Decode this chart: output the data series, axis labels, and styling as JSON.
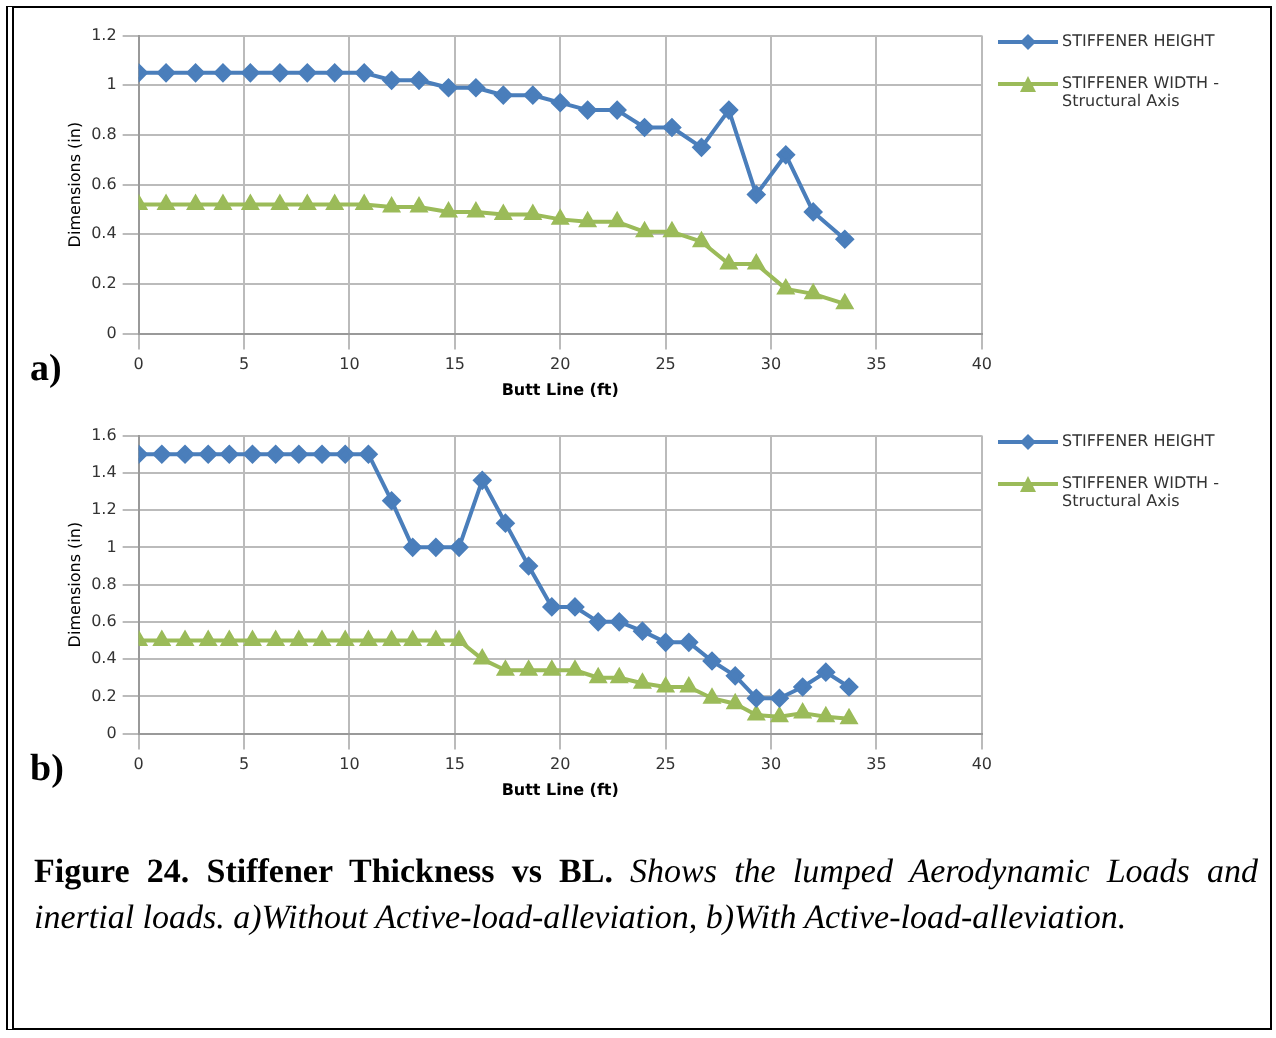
{
  "chart_data": [
    {
      "type": "line",
      "xlabel": "Butt Line (ft)",
      "ylabel": "Dimensions (in)",
      "xlim": [
        0,
        40
      ],
      "xticks": [
        0,
        5,
        10,
        15,
        20,
        25,
        30,
        35,
        40
      ],
      "ylim": [
        0,
        1.2
      ],
      "yticks": [
        0,
        0.2,
        0.4,
        0.6,
        0.8,
        1,
        1.2
      ],
      "grid": true,
      "legend": "right",
      "annotations": [
        "a)"
      ],
      "series": [
        {
          "name": "STIFFENER HEIGHT",
          "color": "#4a7ebb",
          "marker": "diamond",
          "x": [
            0,
            1.3,
            2.7,
            4,
            5.3,
            6.7,
            8,
            9.3,
            10.7,
            12,
            13.3,
            14.7,
            16,
            17.3,
            18.7,
            20,
            21.3,
            22.7,
            24,
            25.3,
            26.7,
            28,
            29.3,
            30.7,
            32,
            33.5
          ],
          "values": [
            1.05,
            1.05,
            1.05,
            1.05,
            1.05,
            1.05,
            1.05,
            1.05,
            1.05,
            1.02,
            1.02,
            0.99,
            0.99,
            0.96,
            0.96,
            0.93,
            0.9,
            0.9,
            0.83,
            0.83,
            0.75,
            0.9,
            0.56,
            0.72,
            0.49,
            0.38
          ]
        },
        {
          "name": "STIFFENER WIDTH - Structural Axis",
          "color": "#9bbb59",
          "marker": "triangle",
          "x": [
            0,
            1.3,
            2.7,
            4,
            5.3,
            6.7,
            8,
            9.3,
            10.7,
            12,
            13.3,
            14.7,
            16,
            17.3,
            18.7,
            20,
            21.3,
            22.7,
            24,
            25.3,
            26.7,
            28,
            29.3,
            30.7,
            32,
            33.5
          ],
          "values": [
            0.52,
            0.52,
            0.52,
            0.52,
            0.52,
            0.52,
            0.52,
            0.52,
            0.52,
            0.51,
            0.51,
            0.49,
            0.49,
            0.48,
            0.48,
            0.46,
            0.45,
            0.45,
            0.41,
            0.41,
            0.37,
            0.28,
            0.28,
            0.18,
            0.16,
            0.12
          ]
        }
      ]
    },
    {
      "type": "line",
      "xlabel": "Butt Line (ft)",
      "ylabel": "Dimensions (in)",
      "xlim": [
        0,
        40
      ],
      "xticks": [
        0,
        5,
        10,
        15,
        20,
        25,
        30,
        35,
        40
      ],
      "ylim": [
        0,
        1.6
      ],
      "yticks": [
        0,
        0.2,
        0.4,
        0.6,
        0.8,
        1,
        1.2,
        1.4,
        1.6
      ],
      "grid": true,
      "legend": "right",
      "annotations": [
        "b)",
        "Figure 24. Stiffener Thickness vs BL.",
        "Shows the lumped Aerodynamic Loads and inertial loads. a)Without Active-load-alleviation, b)With Active-load-alleviation."
      ],
      "series": [
        {
          "name": "STIFFENER HEIGHT",
          "color": "#4a7ebb",
          "marker": "diamond",
          "x": [
            0,
            1.1,
            2.2,
            3.3,
            4.3,
            5.4,
            6.5,
            7.6,
            8.7,
            9.8,
            10.9,
            12,
            13,
            14.1,
            15.2,
            16.3,
            17.4,
            18.5,
            19.6,
            20.7,
            21.8,
            22.8,
            23.9,
            25,
            26.1,
            27.2,
            28.3,
            29.3,
            30.4,
            31.5,
            32.6,
            33.7
          ],
          "values": [
            1.5,
            1.5,
            1.5,
            1.5,
            1.5,
            1.5,
            1.5,
            1.5,
            1.5,
            1.5,
            1.5,
            1.25,
            1,
            1,
            1,
            1.36,
            1.13,
            0.9,
            0.68,
            0.68,
            0.6,
            0.6,
            0.55,
            0.49,
            0.49,
            0.39,
            0.31,
            0.19,
            0.19,
            0.25,
            0.33,
            0.25
          ]
        },
        {
          "name": "STIFFENER WIDTH - Structural Axis",
          "color": "#9bbb59",
          "marker": "triangle",
          "x": [
            0,
            1.1,
            2.2,
            3.3,
            4.3,
            5.4,
            6.5,
            7.6,
            8.7,
            9.8,
            10.9,
            12,
            13,
            14.1,
            15.2,
            16.3,
            17.4,
            18.5,
            19.6,
            20.7,
            21.8,
            22.8,
            23.9,
            25,
            26.1,
            27.2,
            28.3,
            29.3,
            30.4,
            31.5,
            32.6,
            33.7
          ],
          "values": [
            0.5,
            0.5,
            0.5,
            0.5,
            0.5,
            0.5,
            0.5,
            0.5,
            0.5,
            0.5,
            0.5,
            0.5,
            0.5,
            0.5,
            0.5,
            0.4,
            0.34,
            0.34,
            0.34,
            0.34,
            0.3,
            0.3,
            0.27,
            0.25,
            0.25,
            0.19,
            0.16,
            0.1,
            0.09,
            0.11,
            0.09,
            0.08
          ]
        }
      ]
    }
  ]
}
